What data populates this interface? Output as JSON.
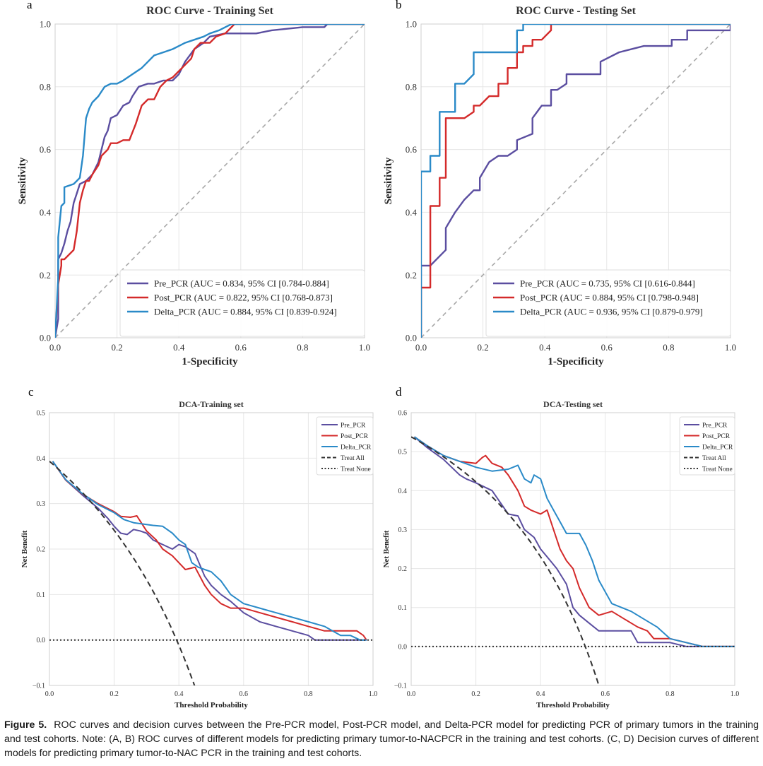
{
  "figure": {
    "caption_label": "Figure 5.",
    "caption_text": "ROC curves and decision curves between the Pre-PCR model, Post-PCR model, and Delta-PCR model for predicting PCR of primary tumors in the training and test cohorts. Note: (A, B) ROC curves of different models for predicting primary tumor-to-NACPCR in the training and test cohorts. (C, D) Decision curves of different models for predicting primary tumor-to-NAC PCR in the training and test cohorts."
  },
  "colors": {
    "pre": "#5b4ea0",
    "post": "#d42a2a",
    "delta": "#2a8ac8",
    "treat_all": "#333333",
    "treat_none": "#333333",
    "diagonal": "#a8a8a8"
  },
  "chart_data": [
    {
      "panel_label": "a",
      "type": "line",
      "title": "ROC Curve - Training Set",
      "xlabel": "1-Specificity",
      "ylabel": "Sensitivity",
      "xlim": [
        0,
        1
      ],
      "ylim": [
        0,
        1
      ],
      "xticks": [
        "0.0",
        "0.2",
        "0.4",
        "0.6",
        "0.8",
        "1.0"
      ],
      "yticks": [
        "0.0",
        "0.2",
        "0.4",
        "0.6",
        "0.8",
        "1.0"
      ],
      "grid": true,
      "legend_position": "lower-right",
      "diagonal": true,
      "series": [
        {
          "name": "Pre_PCR (AUC = 0.834, 95% CI [0.784-0.884]",
          "color_key": "pre",
          "x": [
            0,
            0.01,
            0.01,
            0.02,
            0.03,
            0.04,
            0.05,
            0.06,
            0.07,
            0.08,
            0.1,
            0.12,
            0.14,
            0.15,
            0.16,
            0.17,
            0.18,
            0.2,
            0.22,
            0.24,
            0.25,
            0.27,
            0.3,
            0.32,
            0.35,
            0.38,
            0.4,
            0.42,
            0.45,
            0.48,
            0.5,
            0.55,
            0.6,
            0.65,
            0.7,
            0.8,
            0.87,
            0.88,
            1.0
          ],
          "y": [
            0,
            0.06,
            0.25,
            0.27,
            0.3,
            0.34,
            0.37,
            0.43,
            0.46,
            0.49,
            0.5,
            0.52,
            0.56,
            0.6,
            0.64,
            0.66,
            0.7,
            0.71,
            0.74,
            0.75,
            0.77,
            0.8,
            0.81,
            0.81,
            0.82,
            0.82,
            0.84,
            0.88,
            0.92,
            0.94,
            0.96,
            0.97,
            0.97,
            0.97,
            0.98,
            0.99,
            0.99,
            1.0,
            1.0
          ]
        },
        {
          "name": "Post_PCR (AUC = 0.822, 95% CI [0.768-0.873]",
          "color_key": "post",
          "x": [
            0,
            0.01,
            0.02,
            0.02,
            0.03,
            0.05,
            0.06,
            0.07,
            0.08,
            0.09,
            0.1,
            0.11,
            0.12,
            0.14,
            0.15,
            0.17,
            0.18,
            0.2,
            0.22,
            0.24,
            0.26,
            0.28,
            0.3,
            0.32,
            0.34,
            0.36,
            0.38,
            0.4,
            0.42,
            0.44,
            0.45,
            0.47,
            0.5,
            0.52,
            0.55,
            0.57,
            0.58,
            0.6,
            1.0
          ],
          "y": [
            0,
            0.17,
            0.23,
            0.25,
            0.25,
            0.27,
            0.28,
            0.34,
            0.43,
            0.47,
            0.5,
            0.5,
            0.52,
            0.55,
            0.58,
            0.6,
            0.62,
            0.62,
            0.63,
            0.63,
            0.68,
            0.74,
            0.76,
            0.76,
            0.8,
            0.82,
            0.83,
            0.85,
            0.87,
            0.89,
            0.92,
            0.94,
            0.94,
            0.96,
            0.97,
            0.99,
            1.0,
            1.0,
            1.0
          ]
        },
        {
          "name": "Delta_PCR (AUC = 0.884, 95% CI [0.839-0.924]",
          "color_key": "delta",
          "x": [
            0,
            0.01,
            0.01,
            0.02,
            0.03,
            0.03,
            0.06,
            0.07,
            0.08,
            0.09,
            0.1,
            0.11,
            0.12,
            0.14,
            0.16,
            0.18,
            0.2,
            0.22,
            0.25,
            0.28,
            0.3,
            0.32,
            0.35,
            0.38,
            0.4,
            0.42,
            0.45,
            0.48,
            0.5,
            0.53,
            0.55,
            0.57,
            0.58,
            1.0
          ],
          "y": [
            0,
            0.19,
            0.32,
            0.42,
            0.43,
            0.48,
            0.49,
            0.5,
            0.51,
            0.58,
            0.7,
            0.73,
            0.75,
            0.77,
            0.8,
            0.81,
            0.81,
            0.82,
            0.84,
            0.86,
            0.88,
            0.9,
            0.91,
            0.92,
            0.93,
            0.94,
            0.95,
            0.96,
            0.97,
            0.98,
            0.99,
            1.0,
            1.0,
            1.0
          ]
        }
      ]
    },
    {
      "panel_label": "b",
      "type": "line",
      "title": "ROC Curve - Testing Set",
      "xlabel": "1-Specificity",
      "ylabel": "Sensitivity",
      "xlim": [
        0,
        1
      ],
      "ylim": [
        0,
        1
      ],
      "xticks": [
        "0.0",
        "0.2",
        "0.4",
        "0.6",
        "0.8",
        "1.0"
      ],
      "yticks": [
        "0.0",
        "0.2",
        "0.4",
        "0.6",
        "0.8",
        "1.0"
      ],
      "grid": true,
      "legend_position": "lower-right",
      "diagonal": true,
      "series": [
        {
          "name": "Pre_PCR (AUC = 0.735, 95% CI [0.616-0.844]",
          "color_key": "pre",
          "x": [
            0,
            0,
            0.03,
            0.08,
            0.08,
            0.11,
            0.14,
            0.17,
            0.19,
            0.19,
            0.22,
            0.25,
            0.28,
            0.31,
            0.31,
            0.36,
            0.36,
            0.39,
            0.42,
            0.42,
            0.44,
            0.47,
            0.47,
            0.58,
            0.58,
            0.64,
            0.72,
            0.81,
            0.81,
            0.86,
            0.86,
            1.0,
            1.0
          ],
          "y": [
            0,
            0.23,
            0.23,
            0.28,
            0.35,
            0.4,
            0.44,
            0.47,
            0.47,
            0.51,
            0.56,
            0.58,
            0.58,
            0.6,
            0.63,
            0.65,
            0.7,
            0.74,
            0.74,
            0.79,
            0.79,
            0.81,
            0.84,
            0.84,
            0.88,
            0.91,
            0.93,
            0.93,
            0.95,
            0.95,
            0.98,
            0.98,
            1.0
          ]
        },
        {
          "name": "Post_PCR (AUC = 0.884, 95% CI [0.798-0.948]",
          "color_key": "post",
          "x": [
            0,
            0,
            0.03,
            0.03,
            0.06,
            0.06,
            0.08,
            0.08,
            0.14,
            0.17,
            0.17,
            0.19,
            0.22,
            0.25,
            0.25,
            0.28,
            0.28,
            0.31,
            0.31,
            0.33,
            0.33,
            0.36,
            0.36,
            0.39,
            0.42,
            0.42,
            1.0
          ],
          "y": [
            0,
            0.16,
            0.16,
            0.42,
            0.42,
            0.51,
            0.51,
            0.7,
            0.7,
            0.72,
            0.74,
            0.74,
            0.77,
            0.77,
            0.81,
            0.81,
            0.86,
            0.86,
            0.91,
            0.91,
            0.93,
            0.93,
            0.95,
            0.95,
            0.98,
            1.0,
            1.0
          ]
        },
        {
          "name": "Delta_PCR (AUC = 0.936, 95% CI [0.879-0.979]",
          "color_key": "delta",
          "x": [
            0,
            0,
            0.03,
            0.03,
            0.06,
            0.06,
            0.11,
            0.11,
            0.14,
            0.17,
            0.17,
            0.31,
            0.31,
            0.33,
            0.33,
            1.0
          ],
          "y": [
            0,
            0.53,
            0.53,
            0.58,
            0.58,
            0.72,
            0.72,
            0.81,
            0.81,
            0.84,
            0.91,
            0.91,
            0.98,
            0.98,
            1.0,
            1.0
          ]
        }
      ]
    },
    {
      "panel_label": "c",
      "type": "line",
      "title": "DCA-Training set",
      "xlabel": "Threshold Probability",
      "ylabel": "Net Benefit",
      "xlim": [
        0,
        1
      ],
      "ylim": [
        -0.1,
        0.5
      ],
      "xticks": [
        "0.0",
        "0.2",
        "0.4",
        "0.6",
        "0.8",
        "1.0"
      ],
      "yticks": [
        "−0.1",
        "0.0",
        "0.1",
        "0.2",
        "0.3",
        "0.4",
        "0.5"
      ],
      "grid": true,
      "legend_position": "upper-right",
      "series": [
        {
          "name": "Pre_PCR",
          "color_key": "pre",
          "style": "solid",
          "x": [
            0.01,
            0.05,
            0.1,
            0.15,
            0.18,
            0.2,
            0.22,
            0.24,
            0.26,
            0.28,
            0.3,
            0.32,
            0.35,
            0.38,
            0.4,
            0.42,
            0.45,
            0.48,
            0.5,
            0.53,
            0.56,
            0.6,
            0.65,
            0.7,
            0.75,
            0.8,
            0.82,
            0.85,
            0.9,
            0.95,
            0.98
          ],
          "y": [
            0.393,
            0.352,
            0.32,
            0.29,
            0.268,
            0.25,
            0.235,
            0.232,
            0.243,
            0.24,
            0.235,
            0.22,
            0.21,
            0.2,
            0.21,
            0.205,
            0.19,
            0.14,
            0.12,
            0.1,
            0.085,
            0.06,
            0.04,
            0.03,
            0.02,
            0.01,
            0.0,
            0.0,
            0.0,
            0.0,
            0.0
          ]
        },
        {
          "name": "Post_PCR",
          "color_key": "post",
          "style": "solid",
          "x": [
            0.01,
            0.05,
            0.1,
            0.15,
            0.2,
            0.22,
            0.25,
            0.27,
            0.3,
            0.33,
            0.35,
            0.38,
            0.4,
            0.42,
            0.45,
            0.48,
            0.5,
            0.53,
            0.56,
            0.6,
            0.65,
            0.7,
            0.75,
            0.8,
            0.85,
            0.9,
            0.95,
            0.97,
            0.98
          ],
          "y": [
            0.393,
            0.352,
            0.322,
            0.3,
            0.282,
            0.272,
            0.27,
            0.273,
            0.24,
            0.22,
            0.2,
            0.185,
            0.17,
            0.155,
            0.16,
            0.12,
            0.1,
            0.08,
            0.07,
            0.07,
            0.06,
            0.05,
            0.04,
            0.03,
            0.02,
            0.02,
            0.02,
            0.01,
            0.0
          ]
        },
        {
          "name": "Delta_PCR",
          "color_key": "delta",
          "style": "solid",
          "x": [
            0.01,
            0.05,
            0.1,
            0.15,
            0.2,
            0.23,
            0.26,
            0.29,
            0.32,
            0.35,
            0.38,
            0.4,
            0.42,
            0.44,
            0.46,
            0.48,
            0.5,
            0.53,
            0.56,
            0.6,
            0.65,
            0.7,
            0.75,
            0.8,
            0.85,
            0.9,
            0.93,
            0.96,
            0.98
          ],
          "y": [
            0.393,
            0.353,
            0.323,
            0.298,
            0.28,
            0.265,
            0.258,
            0.255,
            0.252,
            0.25,
            0.235,
            0.22,
            0.21,
            0.17,
            0.16,
            0.155,
            0.15,
            0.13,
            0.1,
            0.08,
            0.07,
            0.06,
            0.05,
            0.04,
            0.03,
            0.01,
            0.01,
            0.0,
            0.0
          ]
        },
        {
          "name": "Treat All",
          "color_key": "treat_all",
          "style": "dashed",
          "prevalence": 0.393
        },
        {
          "name": "Treat None",
          "color_key": "treat_none",
          "style": "dotted",
          "x": [
            0.0,
            1.0
          ],
          "y": [
            0.0,
            0.0
          ]
        }
      ]
    },
    {
      "panel_label": "d",
      "type": "line",
      "title": "DCA-Testing set",
      "xlabel": "Threshold Probability",
      "ylabel": "Net Benefit",
      "xlim": [
        0,
        1
      ],
      "ylim": [
        -0.1,
        0.6
      ],
      "xticks": [
        "0.0",
        "0.2",
        "0.4",
        "0.6",
        "0.8",
        "1.0"
      ],
      "yticks": [
        "−0.1",
        "0.0",
        "0.1",
        "0.2",
        "0.3",
        "0.4",
        "0.5",
        "0.6"
      ],
      "grid": true,
      "legend_position": "upper-right",
      "series": [
        {
          "name": "Pre_PCR",
          "color_key": "pre",
          "style": "solid",
          "x": [
            0.01,
            0.05,
            0.1,
            0.15,
            0.17,
            0.2,
            0.25,
            0.3,
            0.33,
            0.35,
            0.38,
            0.4,
            0.42,
            0.45,
            0.48,
            0.5,
            0.52,
            0.55,
            0.58,
            0.6,
            0.65,
            0.68,
            0.7,
            0.75,
            0.8,
            0.85,
            0.9,
            0.95,
            1.0
          ],
          "y": [
            0.538,
            0.51,
            0.48,
            0.44,
            0.43,
            0.42,
            0.4,
            0.34,
            0.335,
            0.3,
            0.28,
            0.25,
            0.23,
            0.2,
            0.16,
            0.1,
            0.08,
            0.06,
            0.04,
            0.04,
            0.04,
            0.04,
            0.01,
            0.01,
            0.01,
            0.0,
            0.0,
            0.0,
            0.0
          ]
        },
        {
          "name": "Post_PCR",
          "color_key": "post",
          "style": "solid",
          "x": [
            0.01,
            0.05,
            0.1,
            0.15,
            0.2,
            0.22,
            0.23,
            0.25,
            0.28,
            0.3,
            0.33,
            0.35,
            0.37,
            0.4,
            0.42,
            0.44,
            0.46,
            0.48,
            0.5,
            0.52,
            0.55,
            0.58,
            0.62,
            0.66,
            0.7,
            0.73,
            0.75,
            0.8,
            0.85,
            0.9,
            0.95,
            1.0
          ],
          "y": [
            0.538,
            0.515,
            0.49,
            0.475,
            0.47,
            0.485,
            0.49,
            0.47,
            0.46,
            0.44,
            0.4,
            0.36,
            0.35,
            0.34,
            0.35,
            0.3,
            0.25,
            0.22,
            0.2,
            0.15,
            0.1,
            0.08,
            0.09,
            0.07,
            0.05,
            0.04,
            0.02,
            0.02,
            0.01,
            0.0,
            0.0,
            0.0
          ]
        },
        {
          "name": "Delta_PCR",
          "color_key": "delta",
          "style": "solid",
          "x": [
            0.01,
            0.05,
            0.1,
            0.15,
            0.2,
            0.25,
            0.3,
            0.33,
            0.35,
            0.37,
            0.38,
            0.4,
            0.42,
            0.44,
            0.46,
            0.48,
            0.5,
            0.52,
            0.54,
            0.56,
            0.58,
            0.6,
            0.62,
            0.65,
            0.68,
            0.72,
            0.76,
            0.8,
            0.85,
            0.9,
            1.0
          ],
          "y": [
            0.538,
            0.515,
            0.49,
            0.475,
            0.46,
            0.45,
            0.455,
            0.465,
            0.43,
            0.42,
            0.44,
            0.43,
            0.38,
            0.35,
            0.32,
            0.29,
            0.29,
            0.29,
            0.26,
            0.22,
            0.17,
            0.14,
            0.11,
            0.1,
            0.09,
            0.07,
            0.05,
            0.02,
            0.01,
            0.0,
            0.0
          ]
        },
        {
          "name": "Treat All",
          "color_key": "treat_all",
          "style": "dashed",
          "prevalence": 0.538
        },
        {
          "name": "Treat None",
          "color_key": "treat_none",
          "style": "dotted",
          "x": [
            0.0,
            1.0
          ],
          "y": [
            0.0,
            0.0
          ]
        }
      ]
    }
  ]
}
